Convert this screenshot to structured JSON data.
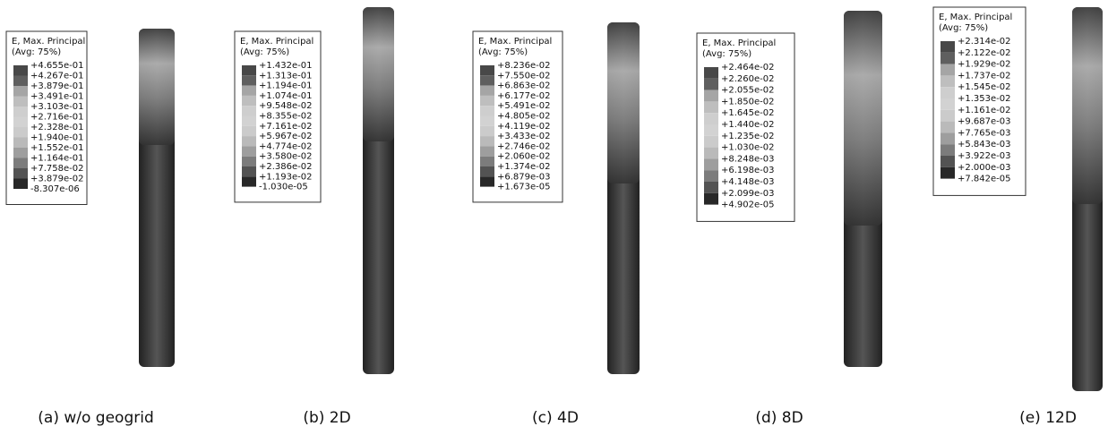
{
  "panels": [
    {
      "legend": {
        "title": "E, Max. Principal",
        "subtitle": "(Avg: 75%)",
        "labels": [
          "+4.655e-01",
          "+4.267e-01",
          "+3.879e-01",
          "+3.491e-01",
          "+3.103e-01",
          "+2.716e-01",
          "+2.328e-01",
          "+1.940e-01",
          "+1.552e-01",
          "+1.164e-01",
          "+7.758e-02",
          "+3.879e-02",
          "-8.307e-06"
        ]
      },
      "caption": "(a) w/o geogrid"
    },
    {
      "legend": {
        "title": "E, Max. Principal",
        "subtitle": "(Avg: 75%)",
        "labels": [
          "+1.432e-01",
          "+1.313e-01",
          "+1.194e-01",
          "+1.074e-01",
          "+9.548e-02",
          "+8.355e-02",
          "+7.161e-02",
          "+5.967e-02",
          "+4.774e-02",
          "+3.580e-02",
          "+2.386e-02",
          "+1.193e-02",
          "-1.030e-05"
        ]
      },
      "caption": "(b) 2D"
    },
    {
      "legend": {
        "title": "E, Max. Principal",
        "subtitle": "(Avg: 75%)",
        "labels": [
          "+8.236e-02",
          "+7.550e-02",
          "+6.863e-02",
          "+6.177e-02",
          "+5.491e-02",
          "+4.805e-02",
          "+4.119e-02",
          "+3.433e-02",
          "+2.746e-02",
          "+2.060e-02",
          "+1.374e-02",
          "+6.879e-03",
          "+1.673e-05"
        ]
      },
      "caption": "(c) 4D"
    },
    {
      "legend": {
        "title": "E, Max. Principal",
        "subtitle": "(Avg: 75%)",
        "labels": [
          "+2.464e-02",
          "+2.260e-02",
          "+2.055e-02",
          "+1.850e-02",
          "+1.645e-02",
          "+1.440e-02",
          "+1.235e-02",
          "+1.030e-02",
          "+8.248e-03",
          "+6.198e-03",
          "+4.148e-03",
          "+2.099e-03",
          "+4.902e-05"
        ]
      },
      "caption": "(d) 8D"
    },
    {
      "legend": {
        "title": "E, Max. Principal",
        "subtitle": "(Avg: 75%)",
        "labels": [
          "+2.314e-02",
          "+2.122e-02",
          "+1.929e-02",
          "+1.737e-02",
          "+1.545e-02",
          "+1.353e-02",
          "+1.161e-02",
          "+9.687e-03",
          "+7.765e-03",
          "+5.843e-03",
          "+3.922e-03",
          "+2.000e-03",
          "+7.842e-05"
        ]
      },
      "caption": "(e) 12D"
    }
  ]
}
